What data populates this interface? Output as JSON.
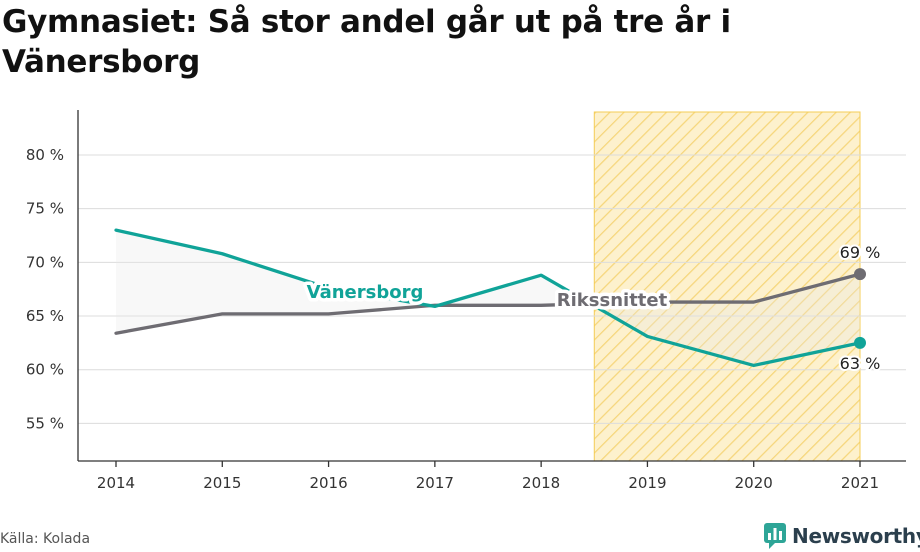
{
  "title": "Gymnasiet: Så stor andel går ut på tre år i Vänersborg",
  "source": "Källa: Kolada",
  "brand": "Newsworthy",
  "colors": {
    "local": "#10a398",
    "national": "#6e6c72",
    "highlight": "#fbe7a6",
    "highlight_stroke": "#f4cd56"
  },
  "icons": {
    "brand": "newsworthy-logo-icon"
  },
  "chart_data": {
    "type": "line",
    "x": [
      "2014",
      "2015",
      "2016",
      "2017",
      "2018",
      "2019",
      "2020",
      "2021"
    ],
    "ylim": [
      51.5,
      84
    ],
    "y_ticks": [
      55,
      60,
      65,
      70,
      75,
      80
    ],
    "y_tick_labels": [
      "55 %",
      "60 %",
      "65 %",
      "70 %",
      "75 %",
      "80 %"
    ],
    "grid": true,
    "highlight_range": [
      "2019",
      "2021"
    ],
    "series": [
      {
        "name": "Vänersborg",
        "color": "#10a398",
        "values": [
          73.0,
          70.8,
          67.6,
          65.9,
          68.8,
          63.1,
          60.4,
          62.5
        ],
        "end_label": "63 %"
      },
      {
        "name": "Rikssnittet",
        "color": "#6e6c72",
        "values": [
          63.4,
          65.2,
          65.2,
          66.0,
          66.0,
          66.3,
          66.3,
          68.9
        ],
        "end_label": "69 %"
      }
    ]
  }
}
